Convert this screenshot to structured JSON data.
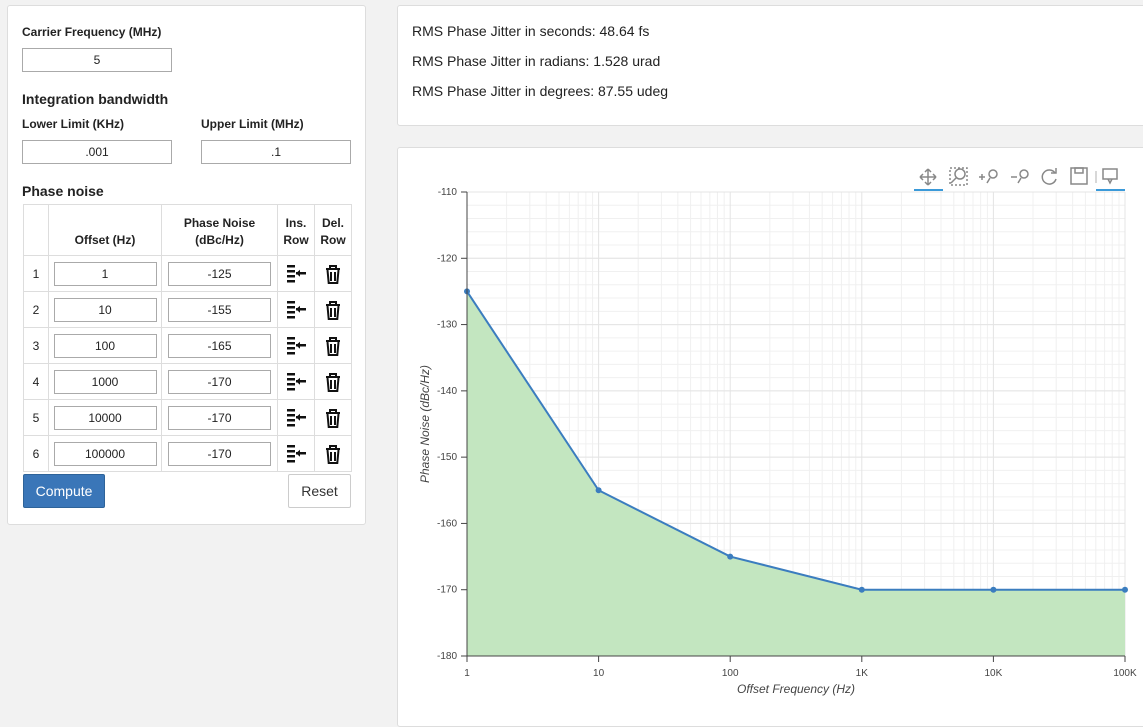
{
  "carrier": {
    "label": "Carrier Frequency (MHz)",
    "value": "5"
  },
  "bandwidth": {
    "title": "Integration bandwidth",
    "lower": {
      "label": "Lower Limit (KHz)",
      "value": ".001"
    },
    "upper": {
      "label": "Upper Limit (MHz)",
      "value": ".1"
    }
  },
  "phase_noise": {
    "title": "Phase noise",
    "headers": [
      "Offset (Hz)",
      "Phase Noise (dBc/Hz)",
      "Ins. Row",
      "Del. Row"
    ],
    "rows": [
      [
        "1",
        "1",
        "-125"
      ],
      [
        "2",
        "10",
        "-155"
      ],
      [
        "3",
        "100",
        "-165"
      ],
      [
        "4",
        "1000",
        "-170"
      ],
      [
        "5",
        "10000",
        "-170"
      ],
      [
        "6",
        "100000",
        "-170"
      ]
    ]
  },
  "buttons": {
    "compute": "Compute",
    "reset": "Reset"
  },
  "results": [
    "RMS Phase Jitter in seconds: 48.64 fs",
    "RMS Phase Jitter in radians: 1.528 urad",
    "RMS Phase Jitter in degrees: 87.55 udeg"
  ],
  "chart_data": {
    "type": "area",
    "x": [
      1,
      10,
      100,
      1000,
      10000,
      100000
    ],
    "values": [
      -125,
      -155,
      -165,
      -170,
      -170,
      -170
    ],
    "color": "#3b7dbf",
    "fill": "#c3e6c0",
    "xlabel": "Offset Frequency (Hz)",
    "ylabel": "Phase Noise (dBc/Hz)",
    "xlog": true,
    "xlim": [
      1,
      100000
    ],
    "xticks": [
      1,
      10,
      100,
      {
        "value": 1000,
        "label": "1K"
      },
      {
        "value": 10000,
        "label": "10K"
      },
      {
        "value": 100000,
        "label": "100K"
      }
    ],
    "ylim": [
      -180,
      -110
    ],
    "yticks": [
      -110,
      -120,
      -130,
      -140,
      -150,
      -160,
      -170,
      -180
    ],
    "grid": true
  }
}
